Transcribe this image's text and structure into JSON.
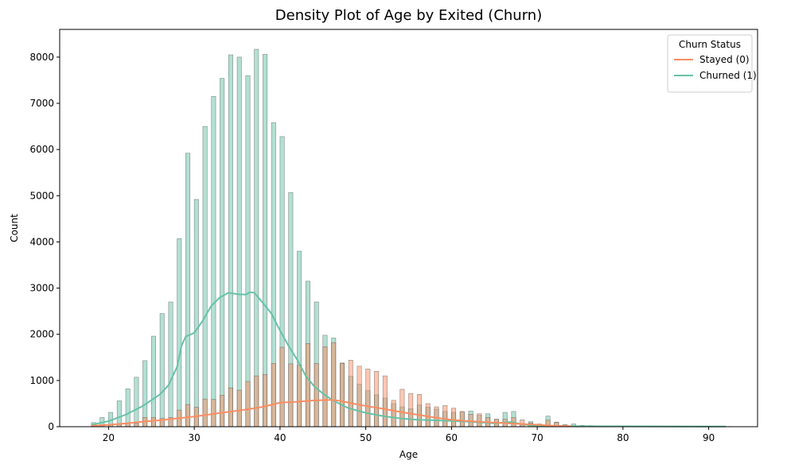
{
  "chart_data": {
    "type": "bar",
    "title": "Density Plot of Age by Exited (Churn)",
    "xlabel": "Age",
    "ylabel": "Count",
    "xlim": [
      14.3,
      95.7
    ],
    "ylim": [
      0,
      8600
    ],
    "xticks": [
      20,
      30,
      40,
      50,
      60,
      70,
      80,
      90
    ],
    "xtick_labels": [
      "20",
      "30",
      "40",
      "50",
      "60",
      "70",
      "80",
      "90"
    ],
    "yticks": [
      0,
      1000,
      2000,
      3000,
      4000,
      5000,
      6000,
      7000,
      8000
    ],
    "ytick_labels": [
      "0",
      "1000",
      "2000",
      "3000",
      "4000",
      "5000",
      "6000",
      "7000",
      "8000"
    ],
    "legend": {
      "title": "Churn Status",
      "placement": "top-right",
      "entries": [
        {
          "label": "Stayed (0)",
          "color": "#fc8d62"
        },
        {
          "label": "Churned (1)",
          "color": "#66c2a5"
        }
      ]
    },
    "bin_width": 0.5,
    "series": [
      {
        "color": "#66c2a5",
        "hist": [
          [
            18,
            90
          ],
          [
            19,
            200
          ],
          [
            20,
            310
          ],
          [
            21,
            560
          ],
          [
            22,
            820
          ],
          [
            23,
            1070
          ],
          [
            24,
            1430
          ],
          [
            25,
            1960
          ],
          [
            26,
            2450
          ],
          [
            27,
            2700
          ],
          [
            28,
            4070
          ],
          [
            29,
            5920
          ],
          [
            30,
            4920
          ],
          [
            31,
            6500
          ],
          [
            32,
            7150
          ],
          [
            33,
            7540
          ],
          [
            34,
            8050
          ],
          [
            35,
            8000
          ],
          [
            36,
            7600
          ],
          [
            37,
            8170
          ],
          [
            38,
            8060
          ],
          [
            39,
            6580
          ],
          [
            40,
            6280
          ],
          [
            41,
            5070
          ],
          [
            42,
            3800
          ],
          [
            43,
            3150
          ],
          [
            44,
            2700
          ],
          [
            45,
            1980
          ],
          [
            46,
            1920
          ],
          [
            47,
            1380
          ],
          [
            48,
            1090
          ],
          [
            49,
            920
          ],
          [
            50,
            780
          ],
          [
            51,
            690
          ],
          [
            52,
            620
          ],
          [
            53,
            500
          ],
          [
            54,
            430
          ],
          [
            55,
            390
          ],
          [
            56,
            470
          ],
          [
            57,
            420
          ],
          [
            58,
            380
          ],
          [
            59,
            330
          ],
          [
            60,
            310
          ],
          [
            61,
            320
          ],
          [
            62,
            340
          ],
          [
            63,
            250
          ],
          [
            64,
            280
          ],
          [
            65,
            160
          ],
          [
            66,
            310
          ],
          [
            67,
            330
          ],
          [
            68,
            70
          ],
          [
            69,
            110
          ],
          [
            70,
            40
          ],
          [
            71,
            230
          ],
          [
            72,
            100
          ],
          [
            73,
            40
          ],
          [
            74,
            60
          ],
          [
            75,
            30
          ],
          [
            76,
            25
          ],
          [
            77,
            20
          ],
          [
            78,
            20
          ],
          [
            79,
            15
          ],
          [
            80,
            10
          ],
          [
            81,
            8
          ],
          [
            82,
            8
          ],
          [
            84,
            5
          ],
          [
            85,
            5
          ],
          [
            92,
            5
          ]
        ],
        "kde_x": [
          18,
          20,
          22,
          24,
          26,
          27,
          28,
          28.5,
          29,
          30,
          31,
          32,
          33,
          34,
          35,
          36,
          36.5,
          37,
          38,
          39,
          40,
          41,
          42,
          43,
          44,
          45,
          46,
          47,
          48,
          49,
          50,
          52,
          54,
          56,
          58,
          60,
          62,
          64,
          65,
          66,
          67,
          68,
          69,
          70,
          72,
          75,
          80,
          85,
          90,
          92
        ],
        "kde_y": [
          40,
          120,
          260,
          450,
          700,
          900,
          1300,
          1750,
          1950,
          2030,
          2300,
          2620,
          2800,
          2900,
          2870,
          2860,
          2910,
          2900,
          2680,
          2450,
          2080,
          1750,
          1450,
          1100,
          870,
          720,
          590,
          490,
          400,
          350,
          300,
          230,
          180,
          150,
          140,
          125,
          110,
          85,
          70,
          90,
          100,
          60,
          35,
          20,
          15,
          10,
          8,
          6,
          5,
          5
        ]
      },
      {
        "color": "#fc8d62",
        "hist": [
          [
            18,
            40
          ],
          [
            19,
            40
          ],
          [
            20,
            50
          ],
          [
            21,
            60
          ],
          [
            22,
            70
          ],
          [
            23,
            70
          ],
          [
            24,
            200
          ],
          [
            25,
            200
          ],
          [
            26,
            180
          ],
          [
            27,
            200
          ],
          [
            28,
            360
          ],
          [
            29,
            480
          ],
          [
            30,
            420
          ],
          [
            31,
            600
          ],
          [
            32,
            590
          ],
          [
            33,
            680
          ],
          [
            34,
            840
          ],
          [
            35,
            790
          ],
          [
            36,
            980
          ],
          [
            37,
            1100
          ],
          [
            38,
            1130
          ],
          [
            39,
            1370
          ],
          [
            40,
            1720
          ],
          [
            41,
            1360
          ],
          [
            42,
            1330
          ],
          [
            43,
            1800
          ],
          [
            44,
            1370
          ],
          [
            45,
            1730
          ],
          [
            46,
            1820
          ],
          [
            47,
            1370
          ],
          [
            48,
            1440
          ],
          [
            49,
            1310
          ],
          [
            50,
            1250
          ],
          [
            51,
            1200
          ],
          [
            52,
            1100
          ],
          [
            53,
            570
          ],
          [
            54,
            810
          ],
          [
            55,
            720
          ],
          [
            56,
            700
          ],
          [
            57,
            500
          ],
          [
            58,
            430
          ],
          [
            59,
            460
          ],
          [
            60,
            400
          ],
          [
            61,
            330
          ],
          [
            62,
            270
          ],
          [
            63,
            280
          ],
          [
            64,
            200
          ],
          [
            65,
            160
          ],
          [
            66,
            160
          ],
          [
            67,
            200
          ],
          [
            68,
            150
          ],
          [
            69,
            80
          ],
          [
            70,
            60
          ],
          [
            71,
            140
          ],
          [
            72,
            90
          ],
          [
            73,
            40
          ]
        ],
        "kde_x": [
          18,
          20,
          22,
          24,
          26,
          28,
          30,
          32,
          34,
          36,
          38,
          40,
          42,
          44,
          46,
          47,
          48,
          50,
          52,
          54,
          56,
          58,
          60,
          62,
          64,
          66,
          68,
          70,
          72,
          74
        ],
        "kde_y": [
          20,
          40,
          70,
          110,
          140,
          180,
          220,
          270,
          320,
          370,
          430,
          520,
          540,
          570,
          580,
          560,
          520,
          450,
          390,
          320,
          260,
          200,
          150,
          120,
          100,
          80,
          60,
          40,
          20,
          10
        ]
      }
    ]
  }
}
